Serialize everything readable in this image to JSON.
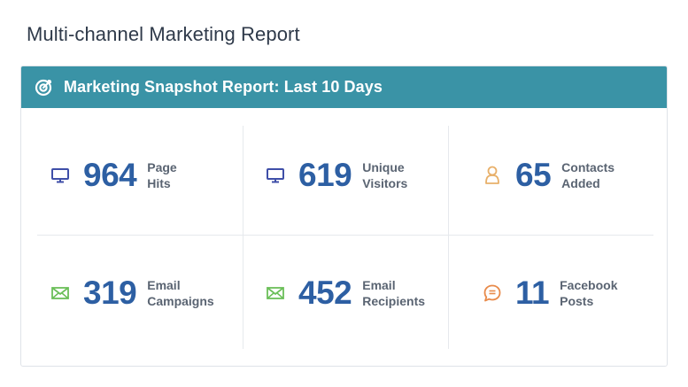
{
  "page": {
    "title": "Multi-channel Marketing Report"
  },
  "card": {
    "header_title": "Marketing Snapshot Report: Last 10 Days",
    "header_icon": "target-icon",
    "header_color": "#3a93a6"
  },
  "metrics": [
    {
      "value": "964",
      "label_line1": "Page",
      "label_line2": "Hits",
      "icon": "monitor-icon",
      "icon_color": "#3f4fa8"
    },
    {
      "value": "619",
      "label_line1": "Unique",
      "label_line2": "Visitors",
      "icon": "monitor-icon",
      "icon_color": "#3f4fa8"
    },
    {
      "value": "65",
      "label_line1": "Contacts",
      "label_line2": "Added",
      "icon": "person-icon",
      "icon_color": "#e8b06a"
    },
    {
      "value": "319",
      "label_line1": "Email",
      "label_line2": "Campaigns",
      "icon": "envelope-icon",
      "icon_color": "#6bbf59"
    },
    {
      "value": "452",
      "label_line1": "Email",
      "label_line2": "Recipients",
      "icon": "envelope-icon",
      "icon_color": "#6bbf59"
    },
    {
      "value": "11",
      "label_line1": "Facebook",
      "label_line2": "Posts",
      "icon": "comment-icon",
      "icon_color": "#e88a4a"
    }
  ],
  "colors": {
    "value_text": "#2d5fa3",
    "label_text": "#5a6472",
    "title_text": "#2f3a4a"
  }
}
